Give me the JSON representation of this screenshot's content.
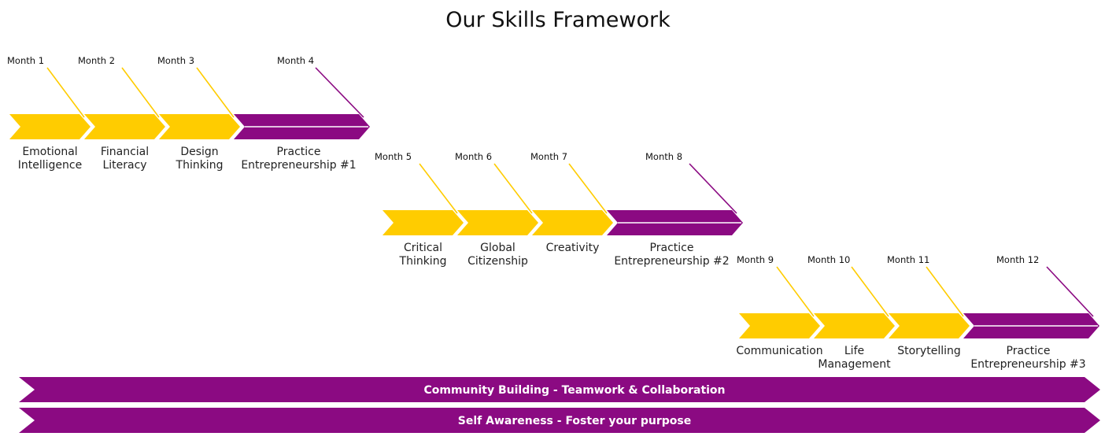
{
  "title": "Our Skills Framework",
  "colors": {
    "yellow": "#FFCC00",
    "purple": "#8B0A82",
    "white": "#FFFFFF",
    "text": "#222222"
  },
  "phases": [
    {
      "steps": [
        {
          "month": "Month 1",
          "skill": [
            "Emotional",
            "Intelligence"
          ],
          "color": "yellow"
        },
        {
          "month": "Month 2",
          "skill": [
            "Financial",
            "Literacy"
          ],
          "color": "yellow"
        },
        {
          "month": "Month 3",
          "skill": [
            "Design",
            "Thinking"
          ],
          "color": "yellow"
        },
        {
          "month": "Month 4",
          "skill": [
            "Practice",
            "Entrepreneurship #1"
          ],
          "color": "purple"
        }
      ]
    },
    {
      "steps": [
        {
          "month": "Month 5",
          "skill": [
            "Critical",
            "Thinking"
          ],
          "color": "yellow"
        },
        {
          "month": "Month 6",
          "skill": [
            "Global",
            "Citizenship"
          ],
          "color": "yellow"
        },
        {
          "month": "Month 7",
          "skill": [
            "Creativity"
          ],
          "color": "yellow"
        },
        {
          "month": "Month 8",
          "skill": [
            "Practice",
            "Entrepreneurship #2"
          ],
          "color": "purple"
        }
      ]
    },
    {
      "steps": [
        {
          "month": "Month 9",
          "skill": [
            "Communication"
          ],
          "color": "yellow"
        },
        {
          "month": "Month 10",
          "skill": [
            "Life",
            "Management"
          ],
          "color": "yellow"
        },
        {
          "month": "Month 11",
          "skill": [
            "Storytelling"
          ],
          "color": "yellow"
        },
        {
          "month": "Month 12",
          "skill": [
            "Practice",
            "Entrepreneurship #3"
          ],
          "color": "purple"
        }
      ]
    }
  ],
  "bands": [
    {
      "label": "Community Building - Teamwork & Collaboration",
      "color": "purple"
    },
    {
      "label": "Self Awareness - Foster your purpose",
      "color": "purple"
    }
  ]
}
